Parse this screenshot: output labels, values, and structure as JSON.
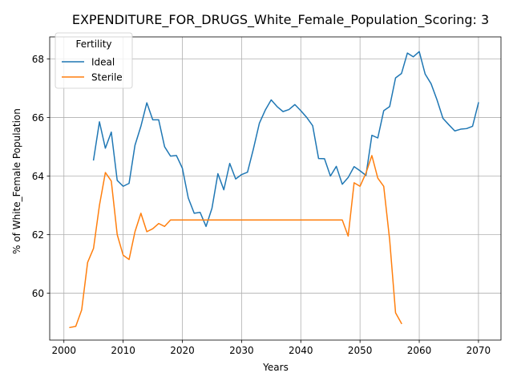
{
  "chart_data": {
    "type": "line",
    "title": "EXPENDITURE_FOR_DRUGS_White_Female_Population_Scoring: 3",
    "xlabel": "Years",
    "ylabel": "% of White_Female Population",
    "xlim": [
      1997.6,
      2073.8
    ],
    "ylim": [
      58.4,
      68.75
    ],
    "xticks": [
      2000,
      2010,
      2020,
      2030,
      2040,
      2050,
      2060,
      2070
    ],
    "yticks": [
      60,
      62,
      64,
      66,
      68
    ],
    "grid": true,
    "legend": {
      "title": "Fertility",
      "placement": "top-left"
    },
    "series": [
      {
        "name": "Ideal",
        "color": "#1f77b4",
        "x": [
          2005,
          2006,
          2007,
          2008,
          2009,
          2010,
          2011,
          2012,
          2013,
          2014,
          2015,
          2016,
          2017,
          2018,
          2019,
          2020,
          2021,
          2022,
          2023,
          2024,
          2025,
          2026,
          2027,
          2028,
          2029,
          2030,
          2031,
          2032,
          2033,
          2034,
          2035,
          2036,
          2037,
          2038,
          2039,
          2040,
          2041,
          2042,
          2043,
          2044,
          2045,
          2046,
          2047,
          2048,
          2049,
          2050,
          2051,
          2052,
          2053,
          2054,
          2055,
          2056,
          2057,
          2058,
          2059,
          2060,
          2061,
          2062,
          2063,
          2064,
          2065,
          2066,
          2067,
          2068,
          2069,
          2070
        ],
        "y": [
          64.55,
          65.85,
          64.95,
          65.5,
          63.85,
          63.65,
          63.75,
          65.05,
          65.7,
          66.5,
          65.92,
          65.92,
          65.0,
          64.68,
          64.7,
          64.27,
          63.25,
          62.73,
          62.76,
          62.28,
          62.9,
          64.08,
          63.53,
          64.43,
          63.9,
          64.05,
          64.13,
          64.93,
          65.8,
          66.25,
          66.6,
          66.37,
          66.2,
          66.27,
          66.44,
          66.23,
          66.0,
          65.72,
          64.6,
          64.59,
          64.0,
          64.33,
          63.72,
          63.95,
          64.32,
          64.18,
          64.02,
          65.39,
          65.3,
          66.23,
          66.37,
          67.35,
          67.5,
          68.2,
          68.07,
          68.25,
          67.48,
          67.15,
          66.6,
          65.97,
          65.75,
          65.54,
          65.6,
          65.62,
          65.7,
          66.5
        ]
      },
      {
        "name": "Sterile",
        "color": "#ff7f0e",
        "x": [
          2001,
          2002,
          2003,
          2004,
          2005,
          2006,
          2007,
          2008,
          2009,
          2010,
          2011,
          2012,
          2013,
          2014,
          2015,
          2016,
          2017,
          2018,
          2019,
          2020,
          2021,
          2022,
          2023,
          2024,
          2025,
          2026,
          2027,
          2028,
          2029,
          2030,
          2031,
          2032,
          2033,
          2034,
          2035,
          2036,
          2037,
          2038,
          2039,
          2040,
          2041,
          2042,
          2043,
          2044,
          2045,
          2046,
          2047,
          2048,
          2049,
          2050,
          2051,
          2052,
          2053,
          2054,
          2055,
          2056,
          2057
        ],
        "y": [
          58.83,
          58.87,
          59.43,
          61.05,
          61.53,
          63.0,
          64.12,
          63.83,
          62.0,
          61.3,
          61.15,
          62.1,
          62.73,
          62.1,
          62.2,
          62.38,
          62.28,
          62.5,
          62.5,
          62.5,
          62.5,
          62.5,
          62.5,
          62.5,
          62.5,
          62.5,
          62.5,
          62.5,
          62.5,
          62.5,
          62.5,
          62.5,
          62.5,
          62.5,
          62.5,
          62.5,
          62.5,
          62.5,
          62.5,
          62.5,
          62.5,
          62.5,
          62.5,
          62.5,
          62.5,
          62.5,
          62.5,
          61.95,
          63.77,
          63.65,
          64.1,
          64.7,
          63.93,
          63.65,
          61.83,
          59.33,
          58.97
        ]
      }
    ]
  }
}
